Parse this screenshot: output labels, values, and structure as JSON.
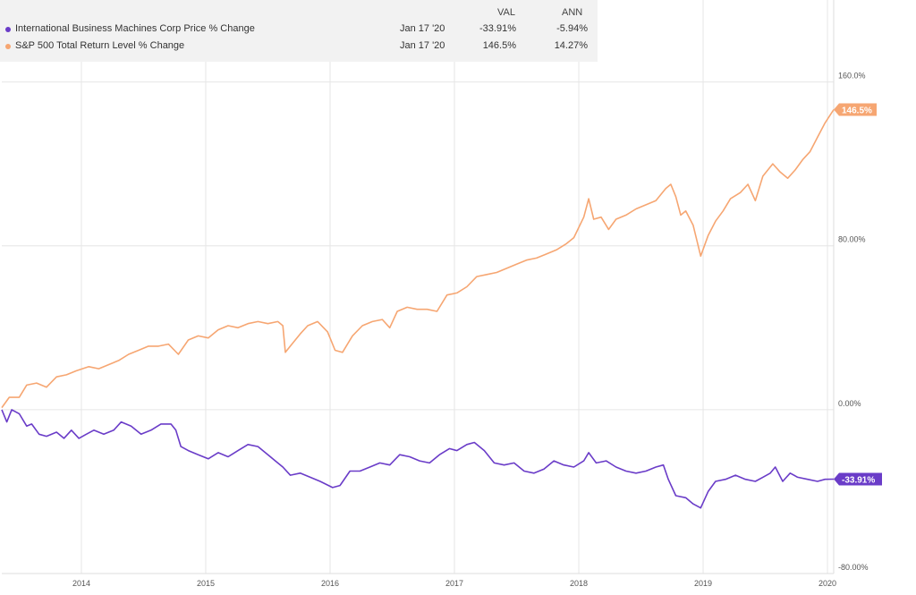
{
  "legend": {
    "col_val": "VAL",
    "col_ann": "ANN",
    "rows": [
      {
        "name": "International Business Machines Corp Price % Change",
        "date": "Jan 17 '20",
        "val": "-33.91%",
        "ann": "-5.94%",
        "color": "#6a3cc8"
      },
      {
        "name": "S&P 500 Total Return Level % Change",
        "date": "Jan 17 '20",
        "val": "146.5%",
        "ann": "14.27%",
        "color": "#f6a672"
      }
    ]
  },
  "chart_data": {
    "type": "line",
    "xlim": [
      2013.36,
      2020.05
    ],
    "ylim": [
      -80,
      200
    ],
    "yticks": [
      {
        "v": 160,
        "label": "160.0%"
      },
      {
        "v": 80,
        "label": "80.00%"
      },
      {
        "v": 0,
        "label": "0.00%"
      },
      {
        "v": -80,
        "label": "-80.00%"
      }
    ],
    "xticks": [
      {
        "v": 2014,
        "label": "2014"
      },
      {
        "v": 2015,
        "label": "2015"
      },
      {
        "v": 2016,
        "label": "2016"
      },
      {
        "v": 2017,
        "label": "2017"
      },
      {
        "v": 2018,
        "label": "2018"
      },
      {
        "v": 2019,
        "label": "2019"
      },
      {
        "v": 2020,
        "label": "2020"
      }
    ],
    "grid": true,
    "legend": "top-left",
    "series": [
      {
        "name": "S&P 500 Total Return Level % Change",
        "color": "#f6a672",
        "end_label": "146.5%",
        "points": [
          [
            2013.36,
            1
          ],
          [
            2013.42,
            6
          ],
          [
            2013.5,
            6
          ],
          [
            2013.56,
            12
          ],
          [
            2013.64,
            13
          ],
          [
            2013.72,
            11
          ],
          [
            2013.8,
            16
          ],
          [
            2013.88,
            17
          ],
          [
            2013.96,
            19
          ],
          [
            2014.06,
            21
          ],
          [
            2014.14,
            20
          ],
          [
            2014.22,
            22
          ],
          [
            2014.3,
            24
          ],
          [
            2014.38,
            27
          ],
          [
            2014.46,
            29
          ],
          [
            2014.54,
            31
          ],
          [
            2014.62,
            31
          ],
          [
            2014.7,
            32
          ],
          [
            2014.78,
            27
          ],
          [
            2014.86,
            34
          ],
          [
            2014.94,
            36
          ],
          [
            2015.02,
            35
          ],
          [
            2015.1,
            39
          ],
          [
            2015.18,
            41
          ],
          [
            2015.26,
            40
          ],
          [
            2015.34,
            42
          ],
          [
            2015.42,
            43
          ],
          [
            2015.5,
            42
          ],
          [
            2015.58,
            43
          ],
          [
            2015.62,
            41
          ],
          [
            2015.64,
            28
          ],
          [
            2015.68,
            31
          ],
          [
            2015.76,
            37
          ],
          [
            2015.82,
            41
          ],
          [
            2015.9,
            43
          ],
          [
            2015.98,
            38
          ],
          [
            2016.04,
            29
          ],
          [
            2016.1,
            28
          ],
          [
            2016.18,
            36
          ],
          [
            2016.26,
            41
          ],
          [
            2016.34,
            43
          ],
          [
            2016.42,
            44
          ],
          [
            2016.48,
            40
          ],
          [
            2016.54,
            48
          ],
          [
            2016.62,
            50
          ],
          [
            2016.7,
            49
          ],
          [
            2016.78,
            49
          ],
          [
            2016.86,
            48
          ],
          [
            2016.94,
            56
          ],
          [
            2017.02,
            57
          ],
          [
            2017.1,
            60
          ],
          [
            2017.18,
            65
          ],
          [
            2017.26,
            66
          ],
          [
            2017.34,
            67
          ],
          [
            2017.42,
            69
          ],
          [
            2017.5,
            71
          ],
          [
            2017.58,
            73
          ],
          [
            2017.66,
            74
          ],
          [
            2017.74,
            76
          ],
          [
            2017.82,
            78
          ],
          [
            2017.9,
            81
          ],
          [
            2017.96,
            84
          ],
          [
            2018.04,
            94
          ],
          [
            2018.08,
            103
          ],
          [
            2018.12,
            93
          ],
          [
            2018.18,
            94
          ],
          [
            2018.24,
            88
          ],
          [
            2018.3,
            93
          ],
          [
            2018.38,
            95
          ],
          [
            2018.46,
            98
          ],
          [
            2018.54,
            100
          ],
          [
            2018.62,
            102
          ],
          [
            2018.7,
            108
          ],
          [
            2018.74,
            110
          ],
          [
            2018.78,
            104
          ],
          [
            2018.82,
            95
          ],
          [
            2018.86,
            97
          ],
          [
            2018.92,
            90
          ],
          [
            2018.98,
            75
          ],
          [
            2019.04,
            85
          ],
          [
            2019.1,
            92
          ],
          [
            2019.16,
            97
          ],
          [
            2019.22,
            103
          ],
          [
            2019.3,
            106
          ],
          [
            2019.36,
            110
          ],
          [
            2019.42,
            102
          ],
          [
            2019.48,
            114
          ],
          [
            2019.56,
            120
          ],
          [
            2019.62,
            116
          ],
          [
            2019.68,
            113
          ],
          [
            2019.74,
            117
          ],
          [
            2019.8,
            122
          ],
          [
            2019.86,
            126
          ],
          [
            2019.92,
            133
          ],
          [
            2019.98,
            140
          ],
          [
            2020.05,
            146.5
          ]
        ]
      },
      {
        "name": "International Business Machines Corp Price % Change",
        "color": "#6a3cc8",
        "end_label": "-33.91%",
        "points": [
          [
            2013.36,
            0
          ],
          [
            2013.4,
            -6
          ],
          [
            2013.44,
            0
          ],
          [
            2013.5,
            -2
          ],
          [
            2013.56,
            -8
          ],
          [
            2013.6,
            -7
          ],
          [
            2013.66,
            -12
          ],
          [
            2013.72,
            -13
          ],
          [
            2013.8,
            -11
          ],
          [
            2013.86,
            -14
          ],
          [
            2013.92,
            -10
          ],
          [
            2013.98,
            -14
          ],
          [
            2014.04,
            -12
          ],
          [
            2014.1,
            -10
          ],
          [
            2014.18,
            -12
          ],
          [
            2014.26,
            -10
          ],
          [
            2014.32,
            -6
          ],
          [
            2014.4,
            -8
          ],
          [
            2014.48,
            -12
          ],
          [
            2014.56,
            -10
          ],
          [
            2014.64,
            -7
          ],
          [
            2014.72,
            -7
          ],
          [
            2014.76,
            -10
          ],
          [
            2014.8,
            -18
          ],
          [
            2014.86,
            -20
          ],
          [
            2014.94,
            -22
          ],
          [
            2015.02,
            -24
          ],
          [
            2015.1,
            -21
          ],
          [
            2015.18,
            -23
          ],
          [
            2015.26,
            -20
          ],
          [
            2015.34,
            -17
          ],
          [
            2015.42,
            -18
          ],
          [
            2015.5,
            -22
          ],
          [
            2015.56,
            -25
          ],
          [
            2015.62,
            -28
          ],
          [
            2015.68,
            -32
          ],
          [
            2015.76,
            -31
          ],
          [
            2015.84,
            -33
          ],
          [
            2015.92,
            -35
          ],
          [
            2016.02,
            -38
          ],
          [
            2016.08,
            -37
          ],
          [
            2016.16,
            -30
          ],
          [
            2016.24,
            -30
          ],
          [
            2016.32,
            -28
          ],
          [
            2016.4,
            -26
          ],
          [
            2016.48,
            -27
          ],
          [
            2016.56,
            -22
          ],
          [
            2016.64,
            -23
          ],
          [
            2016.72,
            -25
          ],
          [
            2016.8,
            -26
          ],
          [
            2016.88,
            -22
          ],
          [
            2016.96,
            -19
          ],
          [
            2017.02,
            -20
          ],
          [
            2017.1,
            -17
          ],
          [
            2017.16,
            -16
          ],
          [
            2017.24,
            -20
          ],
          [
            2017.32,
            -26
          ],
          [
            2017.4,
            -27
          ],
          [
            2017.48,
            -26
          ],
          [
            2017.56,
            -30
          ],
          [
            2017.64,
            -31
          ],
          [
            2017.72,
            -29
          ],
          [
            2017.8,
            -25
          ],
          [
            2017.88,
            -27
          ],
          [
            2017.96,
            -28
          ],
          [
            2018.04,
            -25
          ],
          [
            2018.08,
            -21
          ],
          [
            2018.14,
            -26
          ],
          [
            2018.22,
            -25
          ],
          [
            2018.3,
            -28
          ],
          [
            2018.38,
            -30
          ],
          [
            2018.46,
            -31
          ],
          [
            2018.54,
            -30
          ],
          [
            2018.62,
            -28
          ],
          [
            2018.68,
            -27
          ],
          [
            2018.72,
            -34
          ],
          [
            2018.78,
            -42
          ],
          [
            2018.86,
            -43
          ],
          [
            2018.92,
            -46
          ],
          [
            2018.98,
            -48
          ],
          [
            2019.04,
            -40
          ],
          [
            2019.1,
            -35
          ],
          [
            2019.18,
            -34
          ],
          [
            2019.26,
            -32
          ],
          [
            2019.34,
            -34
          ],
          [
            2019.42,
            -35
          ],
          [
            2019.48,
            -33
          ],
          [
            2019.54,
            -31
          ],
          [
            2019.58,
            -28
          ],
          [
            2019.64,
            -35
          ],
          [
            2019.7,
            -31
          ],
          [
            2019.76,
            -33
          ],
          [
            2019.84,
            -34
          ],
          [
            2019.92,
            -35
          ],
          [
            2019.98,
            -34
          ],
          [
            2020.05,
            -33.91
          ]
        ]
      }
    ]
  }
}
